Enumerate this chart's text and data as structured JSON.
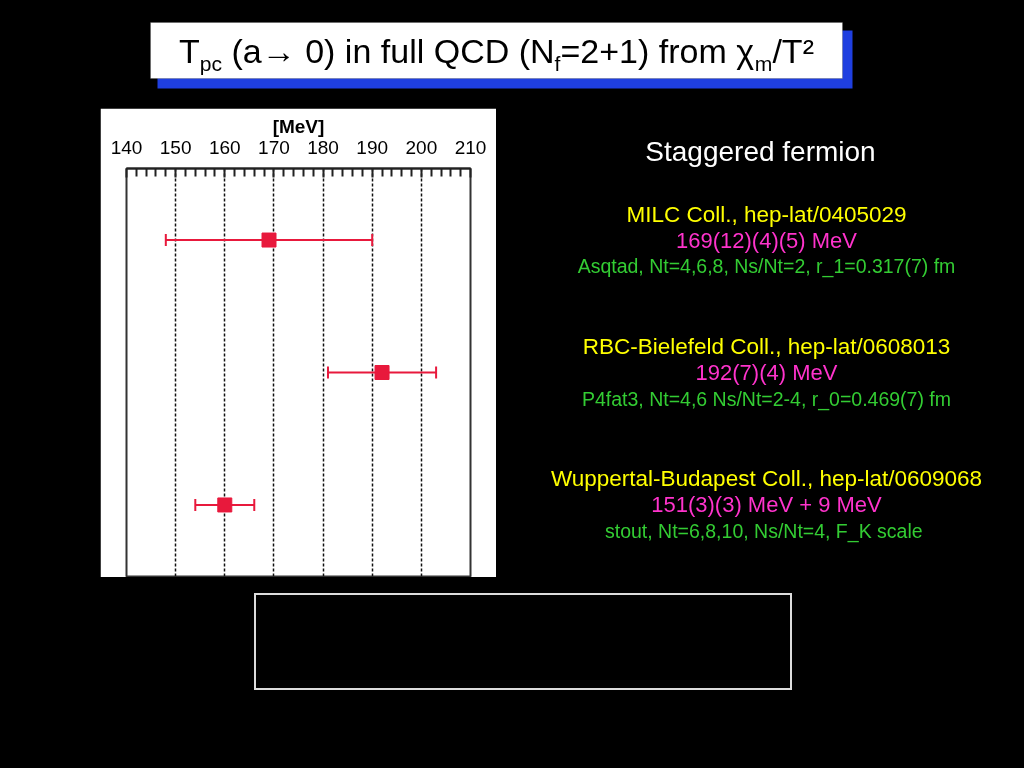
{
  "chart_data": {
    "type": "scatter",
    "title": "T$_{pc}$ (a→ 0) in full QCD (N$_{f}$=2+1) from χ$_{m}$/T²",
    "subtitle": "Staggered fermion",
    "xlabel": "[MeV]",
    "orientation": "horizontal",
    "categories": [
      null,
      null,
      null
    ],
    "values": [
      169,
      192,
      160
    ],
    "errors": [
      21,
      11,
      6
    ],
    "color": "#e8193c",
    "marker": "square",
    "xlim": [
      140,
      210
    ],
    "xticks": [
      140,
      {
        "value": 142,
        "label": null
      },
      {
        "value": 144,
        "label": null
      },
      {
        "value": 146,
        "label": null
      },
      {
        "value": 148,
        "label": null
      },
      150,
      {
        "value": 152,
        "label": null
      },
      {
        "value": 154,
        "label": null
      },
      {
        "value": 156,
        "label": null
      },
      {
        "value": 158,
        "label": null
      },
      160,
      {
        "value": 162,
        "label": null
      },
      {
        "value": 164,
        "label": null
      },
      {
        "value": 166,
        "label": null
      },
      {
        "value": 168,
        "label": null
      },
      170,
      {
        "value": 172,
        "label": null
      },
      {
        "value": 174,
        "label": null
      },
      {
        "value": 176,
        "label": null
      },
      {
        "value": 178,
        "label": null
      },
      180,
      {
        "value": 182,
        "label": null
      },
      {
        "value": 184,
        "label": null
      },
      {
        "value": 186,
        "label": null
      },
      {
        "value": 188,
        "label": null
      },
      190,
      {
        "value": 192,
        "label": null
      },
      {
        "value": 194,
        "label": null
      },
      {
        "value": 196,
        "label": null
      },
      {
        "value": 198,
        "label": null
      },
      200,
      {
        "value": 202,
        "label": null
      },
      {
        "value": 204,
        "label": null
      },
      {
        "value": 206,
        "label": null
      },
      {
        "value": 208,
        "label": null
      },
      210
    ],
    "grid": "x",
    "tick_labels": "x",
    "annotations": [
      "MILC Coll., hep-lat/0405029",
      "169(12)(4)(5) MeV",
      "Asqtad, Nt=4,6,8, Ns/Nt=2, r_1=0.317(7) fm",
      "RBC-Bielefeld Coll., hep-lat/0608013",
      "192(7)(4) MeV",
      "P4fat3, Nt=4,6 Ns/Nt=2-4, r_0=0.469(7) fm",
      "Wuppertal-Budapest Coll., hep-lat/0609068",
      "151(3)(3) MeV + 9 MeV",
      "stout, Nt=6,8,10, Ns/Nt=4, F_K  scale"
    ]
  }
}
